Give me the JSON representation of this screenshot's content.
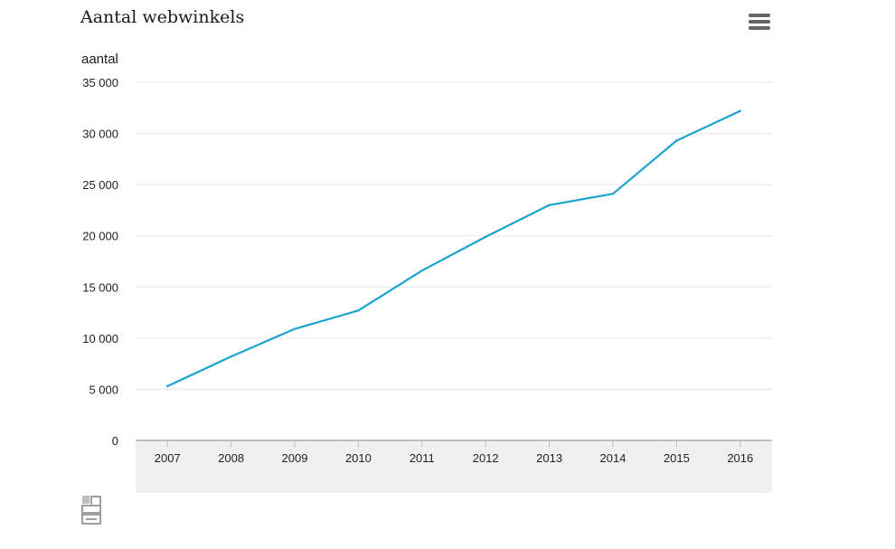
{
  "title": "Aantal webwinkels",
  "menu_icon": "hamburger-menu-icon",
  "logo_icon": "cbs-logo-icon",
  "colors": {
    "line": "#1aa3cc",
    "grid": "#e6e6e6",
    "axis_band": "#f0f0f0",
    "axis": "#c0c0c0"
  },
  "chart_data": {
    "type": "line",
    "title": "Aantal webwinkels",
    "ylabel": "aantal",
    "xlabel": "",
    "categories": [
      "2007",
      "2008",
      "2009",
      "2010",
      "2011",
      "2012",
      "2013",
      "2014",
      "2015",
      "2016"
    ],
    "series": [
      {
        "values": [
          5300,
          8200,
          10900,
          12700,
          16600,
          19900,
          23000,
          24100,
          29300,
          32200
        ]
      }
    ],
    "ylim": [
      0,
      35000
    ],
    "yticks": [
      0,
      5000,
      10000,
      15000,
      20000,
      25000,
      30000,
      35000
    ],
    "ytick_labels": [
      "0",
      "5 000",
      "10 000",
      "15 000",
      "20 000",
      "25 000",
      "30 000",
      "35 000"
    ],
    "grid": true,
    "legend": "none"
  }
}
